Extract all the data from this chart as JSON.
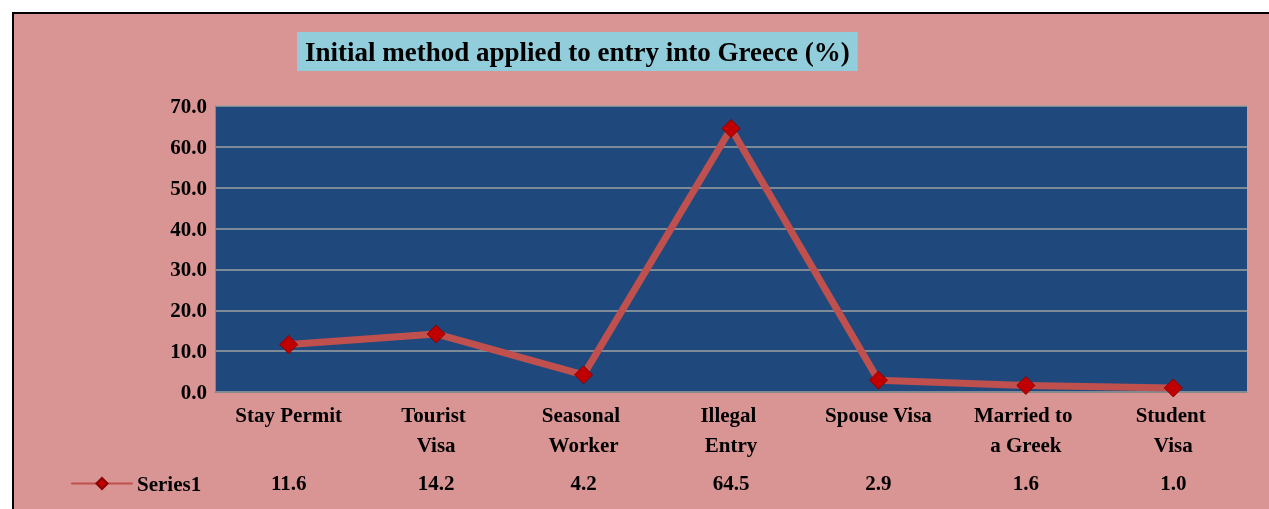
{
  "chart_data": {
    "type": "line",
    "title": "Initial method applied to entry into Greece (%)",
    "categories": [
      "Stay Permit",
      "Tourist Visa",
      "Seasonal Worker",
      "Illegal Entry",
      "Spouse Visa",
      "Married to a Greek",
      "Student Visa"
    ],
    "series": [
      {
        "name": "Series1",
        "color": "#c0504d",
        "values": [
          11.6,
          14.2,
          4.2,
          64.5,
          2.9,
          1.6,
          1.0
        ],
        "value_labels": [
          "11.6",
          "14.2",
          "4.2",
          "64.5",
          "2.9",
          "1.6",
          "1.0"
        ]
      }
    ],
    "ylim": [
      0,
      70
    ],
    "yticks": [
      {
        "value": 0,
        "label": "0.0"
      },
      {
        "value": 10,
        "label": "10.0"
      },
      {
        "value": 20,
        "label": "20.0"
      },
      {
        "value": 30,
        "label": "30.0"
      },
      {
        "value": 40,
        "label": "40.0"
      },
      {
        "value": 50,
        "label": "50.0"
      },
      {
        "value": 60,
        "label": "60.0"
      },
      {
        "value": 70,
        "label": "70.0"
      }
    ],
    "grid": "y",
    "legend": "bottom left",
    "marker": "diamond",
    "line_style": "solid"
  }
}
